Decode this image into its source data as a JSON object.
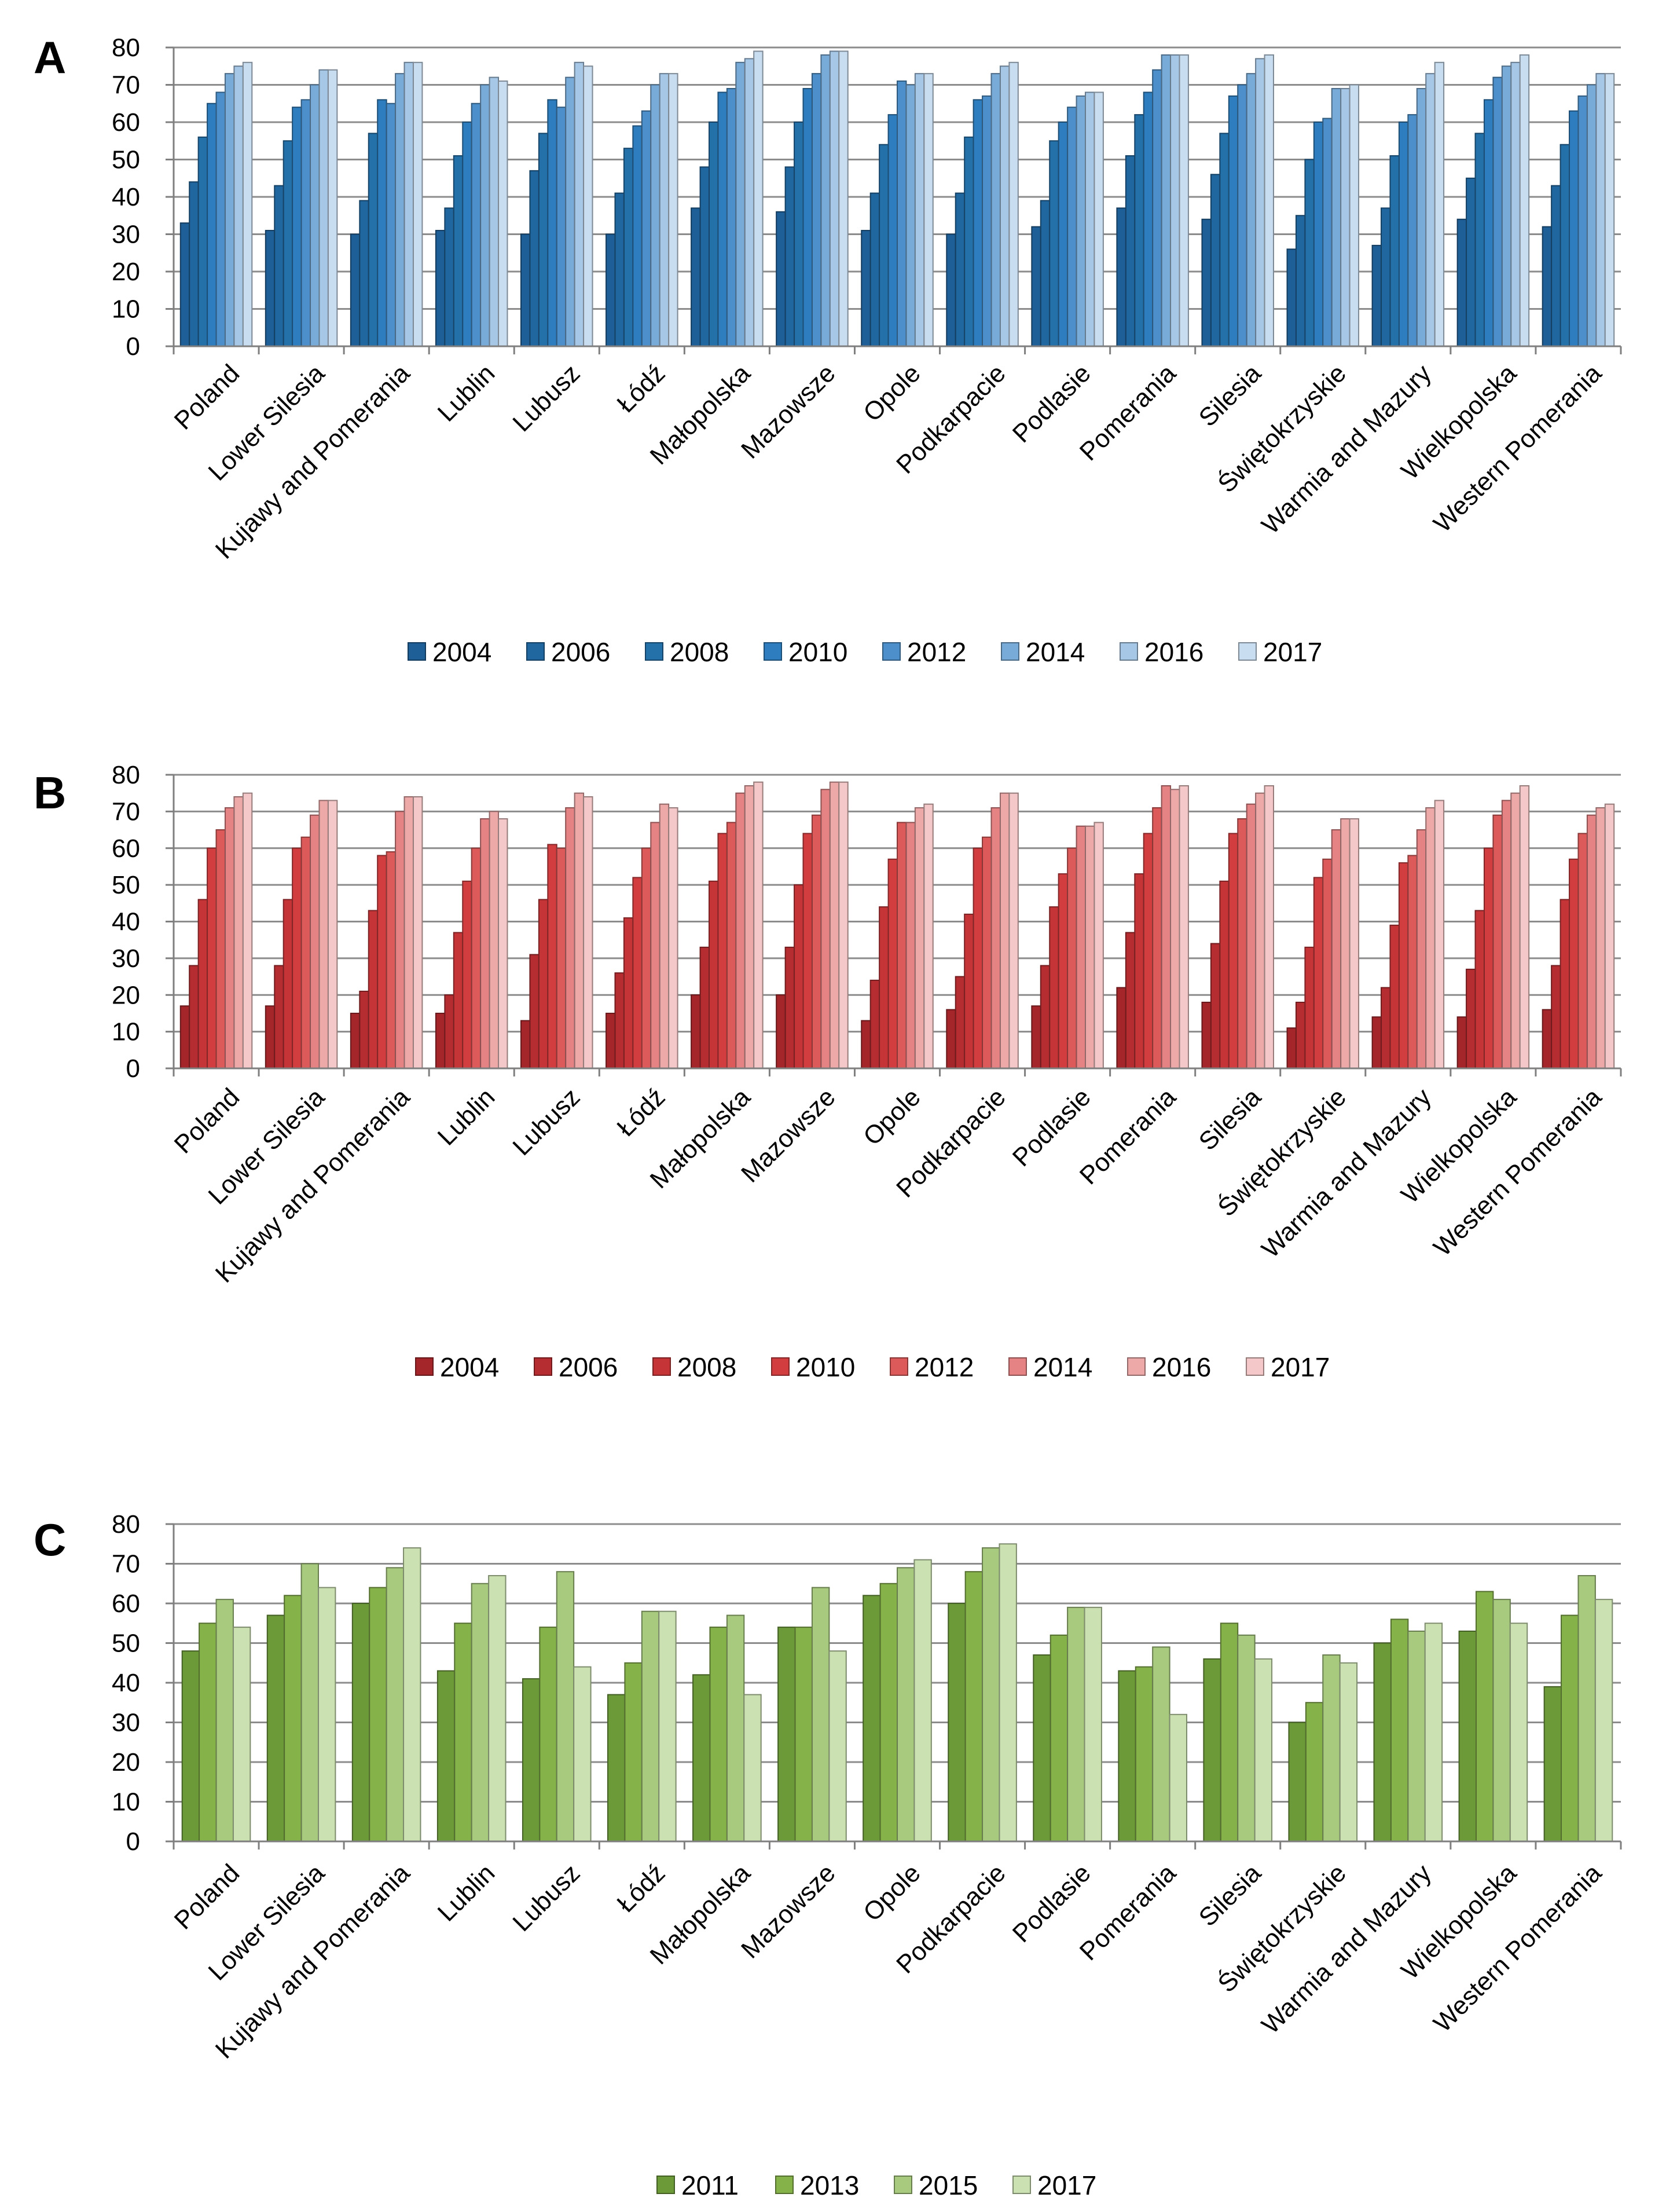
{
  "chart_data": [
    {
      "panel": "A",
      "type": "bar",
      "categories": [
        "Poland",
        "Lower Silesia",
        "Kujawy and Pomerania",
        "Lublin",
        "Lubusz",
        "Łódź",
        "Małopolska",
        "Mazowsze",
        "Opole",
        "Podkarpacie",
        "Podlasie",
        "Pomerania",
        "Silesia",
        "Świętokrzyskie",
        "Warmia and Mazury",
        "Wielkopolska",
        "Western Pomerania"
      ],
      "ylim": [
        0,
        80
      ],
      "yticks": [
        0,
        10,
        20,
        30,
        40,
        50,
        60,
        70,
        80
      ],
      "grid": true,
      "legend_position": "bottom",
      "series": [
        {
          "name": "2004",
          "color": "#1F5F98",
          "values": [
            33,
            31,
            30,
            31,
            30,
            30,
            37,
            36,
            31,
            30,
            32,
            37,
            34,
            26,
            27,
            34,
            32
          ]
        },
        {
          "name": "2006",
          "color": "#21679F",
          "values": [
            44,
            43,
            39,
            37,
            47,
            41,
            48,
            48,
            41,
            41,
            39,
            51,
            46,
            35,
            37,
            45,
            43
          ]
        },
        {
          "name": "2008",
          "color": "#2470A9",
          "values": [
            56,
            55,
            57,
            51,
            57,
            53,
            60,
            60,
            54,
            56,
            55,
            62,
            57,
            50,
            51,
            57,
            54
          ]
        },
        {
          "name": "2010",
          "color": "#2E7DBE",
          "values": [
            65,
            64,
            66,
            60,
            66,
            59,
            68,
            69,
            62,
            66,
            60,
            68,
            67,
            60,
            60,
            66,
            63
          ]
        },
        {
          "name": "2012",
          "color": "#4C8FCA",
          "values": [
            68,
            66,
            65,
            65,
            64,
            63,
            69,
            73,
            71,
            67,
            64,
            74,
            70,
            61,
            62,
            72,
            67
          ]
        },
        {
          "name": "2014",
          "color": "#79ABD8",
          "values": [
            73,
            70,
            73,
            70,
            72,
            70,
            76,
            78,
            70,
            73,
            67,
            78,
            73,
            69,
            69,
            75,
            70
          ]
        },
        {
          "name": "2016",
          "color": "#A6C7E6",
          "values": [
            75,
            74,
            76,
            72,
            76,
            73,
            77,
            79,
            73,
            75,
            68,
            78,
            77,
            69,
            73,
            76,
            73
          ]
        },
        {
          "name": "2017",
          "color": "#C9DDF0",
          "values": [
            76,
            74,
            76,
            71,
            75,
            73,
            79,
            79,
            73,
            76,
            68,
            78,
            78,
            70,
            76,
            78,
            73
          ]
        }
      ]
    },
    {
      "panel": "B",
      "type": "bar",
      "categories": [
        "Poland",
        "Lower Silesia",
        "Kujawy and Pomerania",
        "Lublin",
        "Lubusz",
        "Łódź",
        "Małopolska",
        "Mazowsze",
        "Opole",
        "Podkarpacie",
        "Podlasie",
        "Pomerania",
        "Silesia",
        "Świętokrzyskie",
        "Warmia and Mazury",
        "Wielkopolska",
        "Western Pomerania"
      ],
      "ylim": [
        0,
        80
      ],
      "yticks": [
        0,
        10,
        20,
        30,
        40,
        50,
        60,
        70,
        80
      ],
      "grid": true,
      "legend_position": "bottom",
      "series": [
        {
          "name": "2004",
          "color": "#A5262A",
          "values": [
            17,
            17,
            15,
            15,
            13,
            15,
            20,
            20,
            13,
            16,
            17,
            22,
            18,
            11,
            14,
            14,
            16
          ]
        },
        {
          "name": "2006",
          "color": "#B52D30",
          "values": [
            28,
            28,
            21,
            20,
            31,
            26,
            33,
            33,
            24,
            25,
            28,
            37,
            34,
            18,
            22,
            27,
            28
          ]
        },
        {
          "name": "2008",
          "color": "#C53538",
          "values": [
            46,
            46,
            43,
            37,
            46,
            41,
            51,
            50,
            44,
            42,
            44,
            53,
            51,
            33,
            39,
            43,
            46
          ]
        },
        {
          "name": "2010",
          "color": "#D23E40",
          "values": [
            60,
            60,
            58,
            51,
            61,
            52,
            64,
            64,
            57,
            60,
            53,
            64,
            64,
            52,
            56,
            60,
            57
          ]
        },
        {
          "name": "2012",
          "color": "#DD5A5B",
          "values": [
            65,
            63,
            59,
            60,
            60,
            60,
            67,
            69,
            67,
            63,
            60,
            71,
            68,
            57,
            58,
            69,
            64
          ]
        },
        {
          "name": "2014",
          "color": "#E58384",
          "values": [
            71,
            69,
            70,
            68,
            71,
            67,
            75,
            76,
            67,
            71,
            66,
            77,
            72,
            65,
            65,
            73,
            69
          ]
        },
        {
          "name": "2016",
          "color": "#EDA8A8",
          "values": [
            74,
            73,
            74,
            70,
            75,
            72,
            77,
            78,
            71,
            75,
            66,
            76,
            75,
            68,
            71,
            75,
            71
          ]
        },
        {
          "name": "2017",
          "color": "#F4C8C8",
          "values": [
            75,
            73,
            74,
            68,
            74,
            71,
            78,
            78,
            72,
            75,
            67,
            77,
            77,
            68,
            73,
            77,
            72
          ]
        }
      ]
    },
    {
      "panel": "C",
      "type": "bar",
      "categories": [
        "Poland",
        "Lower Silesia",
        "Kujawy and Pomerania",
        "Lublin",
        "Lubusz",
        "Łódź",
        "Małopolska",
        "Mazowsze",
        "Opole",
        "Podkarpacie",
        "Podlasie",
        "Pomerania",
        "Silesia",
        "Świętokrzyskie",
        "Warmia and Mazury",
        "Wielkopolska",
        "Western Pomerania"
      ],
      "ylim": [
        0,
        80
      ],
      "yticks": [
        0,
        10,
        20,
        30,
        40,
        50,
        60,
        70,
        80
      ],
      "grid": true,
      "legend_position": "bottom",
      "series": [
        {
          "name": "2011",
          "color": "#6C9A38",
          "values": [
            48,
            57,
            60,
            43,
            41,
            37,
            42,
            54,
            62,
            60,
            47,
            43,
            46,
            30,
            50,
            53,
            39
          ]
        },
        {
          "name": "2013",
          "color": "#86B24A",
          "values": [
            55,
            62,
            64,
            55,
            54,
            45,
            54,
            54,
            65,
            68,
            52,
            44,
            55,
            35,
            56,
            63,
            57
          ]
        },
        {
          "name": "2015",
          "color": "#A8CA7E",
          "values": [
            61,
            70,
            69,
            65,
            68,
            58,
            57,
            64,
            69,
            74,
            59,
            49,
            52,
            47,
            53,
            61,
            67
          ]
        },
        {
          "name": "2017",
          "color": "#CCE1B1",
          "values": [
            54,
            64,
            74,
            67,
            44,
            58,
            37,
            48,
            71,
            75,
            59,
            32,
            46,
            45,
            55,
            55,
            61
          ]
        }
      ]
    }
  ],
  "panels": [
    {
      "letter": "A"
    },
    {
      "letter": "B"
    },
    {
      "letter": "C"
    }
  ]
}
